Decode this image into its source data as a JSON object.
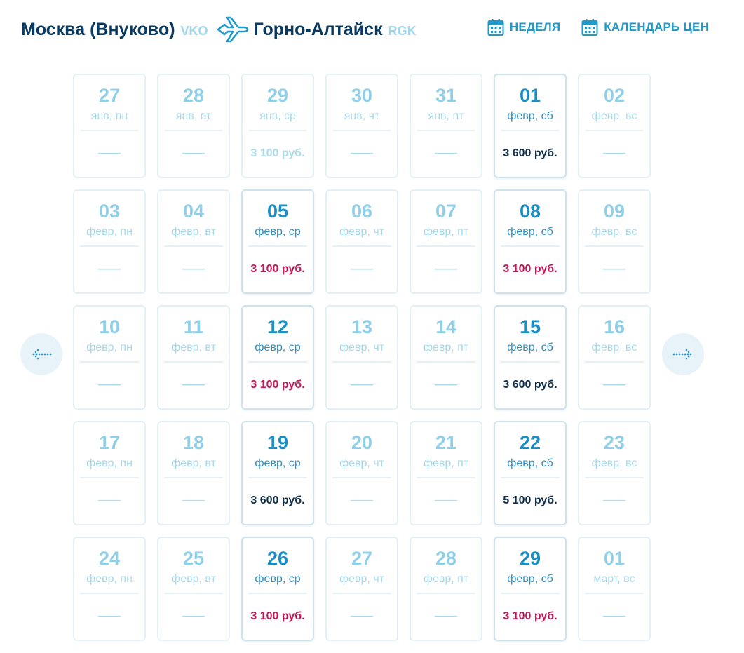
{
  "route": {
    "from_city": "Москва (Внуково)",
    "from_code": "VKO",
    "to_city": "Горно-Алтайск",
    "to_code": "RGK"
  },
  "actions": {
    "week_label": "НЕДЕЛЯ",
    "price_calendar_label": "КАЛЕНДАРЬ ЦЕН"
  },
  "colors": {
    "dark_navy": "#083a62",
    "accent_blue": "#1f9acb",
    "light_blue": "#8fd0e8",
    "price_highlight": "#c2185b"
  },
  "icons": {
    "plane": "plane-icon",
    "calendar": "calendar-icon",
    "prev": "arrow-left-icon",
    "next": "arrow-right-icon"
  },
  "calendar": {
    "weeks": [
      [
        {
          "day": "27",
          "label": "янв, пн",
          "price": "——",
          "active": false,
          "style": "none"
        },
        {
          "day": "28",
          "label": "янв, вт",
          "price": "——",
          "active": false,
          "style": "none"
        },
        {
          "day": "29",
          "label": "янв, ср",
          "price": "3 100 руб.",
          "active": false,
          "style": "muted"
        },
        {
          "day": "30",
          "label": "янв, чт",
          "price": "——",
          "active": false,
          "style": "none"
        },
        {
          "day": "31",
          "label": "янв, пт",
          "price": "——",
          "active": false,
          "style": "none"
        },
        {
          "day": "01",
          "label": "февр, сб",
          "price": "3 600 руб.",
          "active": true,
          "style": "dark"
        },
        {
          "day": "02",
          "label": "февр, вс",
          "price": "——",
          "active": false,
          "style": "none"
        }
      ],
      [
        {
          "day": "03",
          "label": "февр, пн",
          "price": "——",
          "active": false,
          "style": "none"
        },
        {
          "day": "04",
          "label": "февр, вт",
          "price": "——",
          "active": false,
          "style": "none"
        },
        {
          "day": "05",
          "label": "февр, ср",
          "price": "3 100 руб.",
          "active": true,
          "style": "accent"
        },
        {
          "day": "06",
          "label": "февр, чт",
          "price": "——",
          "active": false,
          "style": "none"
        },
        {
          "day": "07",
          "label": "февр, пт",
          "price": "——",
          "active": false,
          "style": "none"
        },
        {
          "day": "08",
          "label": "февр, сб",
          "price": "3 100 руб.",
          "active": true,
          "style": "accent"
        },
        {
          "day": "09",
          "label": "февр, вс",
          "price": "——",
          "active": false,
          "style": "none"
        }
      ],
      [
        {
          "day": "10",
          "label": "февр, пн",
          "price": "——",
          "active": false,
          "style": "none"
        },
        {
          "day": "11",
          "label": "февр, вт",
          "price": "——",
          "active": false,
          "style": "none"
        },
        {
          "day": "12",
          "label": "февр, ср",
          "price": "3 100 руб.",
          "active": true,
          "style": "accent"
        },
        {
          "day": "13",
          "label": "февр, чт",
          "price": "——",
          "active": false,
          "style": "none"
        },
        {
          "day": "14",
          "label": "февр, пт",
          "price": "——",
          "active": false,
          "style": "none"
        },
        {
          "day": "15",
          "label": "февр, сб",
          "price": "3 600 руб.",
          "active": true,
          "style": "dark"
        },
        {
          "day": "16",
          "label": "февр, вс",
          "price": "——",
          "active": false,
          "style": "none"
        }
      ],
      [
        {
          "day": "17",
          "label": "февр, пн",
          "price": "——",
          "active": false,
          "style": "none"
        },
        {
          "day": "18",
          "label": "февр, вт",
          "price": "——",
          "active": false,
          "style": "none"
        },
        {
          "day": "19",
          "label": "февр, ср",
          "price": "3 600 руб.",
          "active": true,
          "style": "dark"
        },
        {
          "day": "20",
          "label": "февр, чт",
          "price": "——",
          "active": false,
          "style": "none"
        },
        {
          "day": "21",
          "label": "февр, пт",
          "price": "——",
          "active": false,
          "style": "none"
        },
        {
          "day": "22",
          "label": "февр, сб",
          "price": "5 100 руб.",
          "active": true,
          "style": "dark"
        },
        {
          "day": "23",
          "label": "февр, вс",
          "price": "——",
          "active": false,
          "style": "none"
        }
      ],
      [
        {
          "day": "24",
          "label": "февр, пн",
          "price": "——",
          "active": false,
          "style": "none"
        },
        {
          "day": "25",
          "label": "февр, вт",
          "price": "——",
          "active": false,
          "style": "none"
        },
        {
          "day": "26",
          "label": "февр, ср",
          "price": "3 100 руб.",
          "active": true,
          "style": "accent"
        },
        {
          "day": "27",
          "label": "февр, чт",
          "price": "——",
          "active": false,
          "style": "none"
        },
        {
          "day": "28",
          "label": "февр, пт",
          "price": "——",
          "active": false,
          "style": "none"
        },
        {
          "day": "29",
          "label": "февр, сб",
          "price": "3 100 руб.",
          "active": true,
          "style": "accent"
        },
        {
          "day": "01",
          "label": "март, вс",
          "price": "——",
          "active": false,
          "style": "none"
        }
      ]
    ]
  }
}
